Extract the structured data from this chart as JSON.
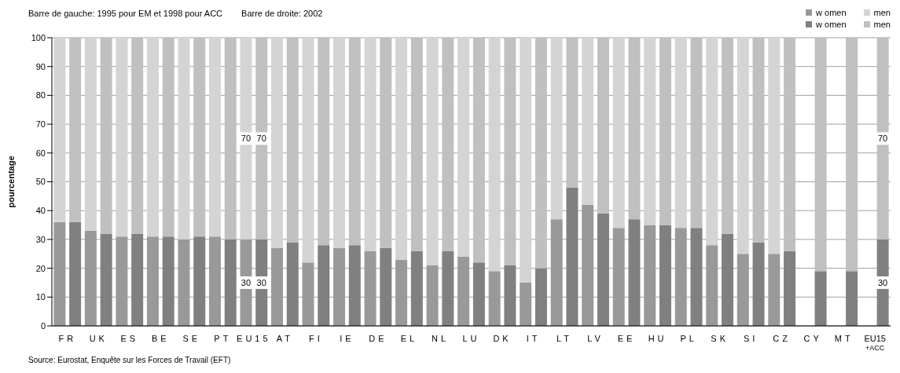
{
  "chart_data": {
    "type": "bar",
    "stacked": true,
    "title": "Barre de gauche: 1995 pour EM et 1998 pour ACC",
    "subtitle": "Barre de droite: 2002",
    "ylabel": "pourcentage",
    "annotations": [
      "Source: Eurostat, Enquête sur les Forces de Travail (EFT)"
    ],
    "categories": [
      "FR",
      null,
      "UK",
      null,
      "ES",
      null,
      "BE",
      null,
      "SE",
      null,
      "PT",
      null,
      "EU15",
      null,
      "AT",
      null,
      "FI",
      null,
      "IE",
      null,
      "DE",
      null,
      "EL",
      null,
      "NL",
      null,
      "LU",
      null,
      "DK",
      null,
      "IT",
      null,
      "LT",
      null,
      "LV",
      null,
      "EE",
      null,
      "HU",
      null,
      "PL",
      null,
      "SK",
      null,
      "SI",
      null,
      "CZ",
      null,
      "CY",
      null,
      "MT",
      null,
      "EU15$_{+ACC}$",
      null
    ],
    "series": [
      {
        "name": "w omen",
        "color": "#999999",
        "values": [
          36,
          null,
          33,
          null,
          31,
          null,
          31,
          null,
          30,
          null,
          31,
          null,
          30,
          null,
          27,
          null,
          22,
          null,
          27,
          null,
          26,
          null,
          23,
          null,
          21,
          null,
          24,
          null,
          19,
          null,
          15,
          null,
          37,
          null,
          42,
          null,
          34,
          null,
          35,
          null,
          34,
          null,
          28,
          null,
          25,
          null,
          25,
          null,
          null,
          null,
          null,
          null,
          null,
          null
        ],
        "value_labels": [
          null,
          null,
          null,
          null,
          null,
          null,
          null,
          null,
          null,
          null,
          null,
          null,
          "30",
          null,
          null,
          null,
          null,
          null,
          null,
          null,
          null,
          null,
          null,
          null,
          null,
          null,
          null,
          null,
          null,
          null,
          null,
          null,
          null,
          null,
          null,
          null,
          null,
          null,
          null,
          null,
          null,
          null,
          null,
          null,
          null,
          null,
          null,
          null,
          null,
          null,
          null,
          null,
          null,
          null
        ]
      },
      {
        "name": "men",
        "color": "#d4d4d4",
        "values": [
          64,
          null,
          67,
          null,
          69,
          null,
          69,
          null,
          70,
          null,
          69,
          null,
          70,
          null,
          73,
          null,
          78,
          null,
          73,
          null,
          74,
          null,
          77,
          null,
          79,
          null,
          76,
          null,
          81,
          null,
          85,
          null,
          63,
          null,
          58,
          null,
          66,
          null,
          65,
          null,
          66,
          null,
          72,
          null,
          75,
          null,
          75,
          null,
          null,
          null,
          null,
          null,
          null,
          null
        ],
        "value_labels": [
          null,
          null,
          null,
          null,
          null,
          null,
          null,
          null,
          null,
          null,
          null,
          null,
          "70",
          null,
          null,
          null,
          null,
          null,
          null,
          null,
          null,
          null,
          null,
          null,
          null,
          null,
          null,
          null,
          null,
          null,
          null,
          null,
          null,
          null,
          null,
          null,
          null,
          null,
          null,
          null,
          null,
          null,
          null,
          null,
          null,
          null,
          null,
          null,
          null,
          null,
          null,
          null,
          null,
          null
        ]
      },
      {
        "name": "w omen",
        "color": "#808080",
        "values": [
          null,
          36,
          null,
          32,
          null,
          32,
          null,
          31,
          null,
          31,
          null,
          30,
          null,
          30,
          null,
          29,
          null,
          28,
          null,
          28,
          null,
          27,
          null,
          26,
          null,
          26,
          null,
          22,
          null,
          21,
          null,
          20,
          null,
          48,
          null,
          39,
          null,
          37,
          null,
          35,
          null,
          34,
          null,
          32,
          null,
          29,
          null,
          26,
          null,
          19,
          null,
          19,
          null,
          30
        ],
        "value_labels": [
          null,
          null,
          null,
          null,
          null,
          null,
          null,
          null,
          null,
          null,
          null,
          null,
          null,
          "30",
          null,
          null,
          null,
          null,
          null,
          null,
          null,
          null,
          null,
          null,
          null,
          null,
          null,
          null,
          null,
          null,
          null,
          null,
          null,
          null,
          null,
          null,
          null,
          null,
          null,
          null,
          null,
          null,
          null,
          null,
          null,
          null,
          null,
          null,
          null,
          null,
          null,
          null,
          null,
          "30"
        ]
      },
      {
        "name": "men",
        "color": "#c0c0c0",
        "values": [
          null,
          64,
          null,
          68,
          null,
          68,
          null,
          69,
          null,
          69,
          null,
          70,
          null,
          70,
          null,
          71,
          null,
          72,
          null,
          72,
          null,
          73,
          null,
          74,
          null,
          74,
          null,
          78,
          null,
          79,
          null,
          80,
          null,
          52,
          null,
          61,
          null,
          63,
          null,
          65,
          null,
          66,
          null,
          68,
          null,
          71,
          null,
          74,
          null,
          81,
          null,
          81,
          null,
          70
        ],
        "value_labels": [
          null,
          null,
          null,
          null,
          null,
          null,
          null,
          null,
          null,
          null,
          null,
          null,
          null,
          "70",
          null,
          null,
          null,
          null,
          null,
          null,
          null,
          null,
          null,
          null,
          null,
          null,
          null,
          null,
          null,
          null,
          null,
          null,
          null,
          null,
          null,
          null,
          null,
          null,
          null,
          null,
          null,
          null,
          null,
          null,
          null,
          null,
          null,
          null,
          null,
          null,
          null,
          null,
          null,
          "70"
        ]
      }
    ],
    "ylim": [
      0,
      100
    ],
    "yticks": [
      0,
      10,
      20,
      30,
      40,
      50,
      60,
      70,
      80,
      90,
      100
    ],
    "grid": "y",
    "legend": "top right"
  }
}
